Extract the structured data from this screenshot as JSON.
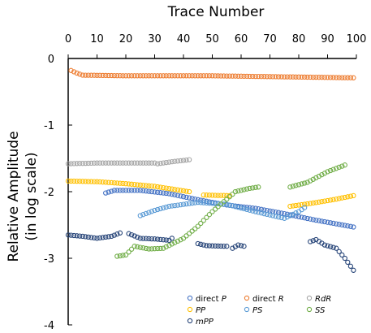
{
  "chart_data": {
    "type": "scatter",
    "title": "Trace Number",
    "ylabel": "Relative Amplitude",
    "ylabel2": "(in log scale)",
    "xlim": [
      0,
      100
    ],
    "ylim": [
      -4,
      0
    ],
    "x_ticks": [
      "0",
      "10",
      "20",
      "30",
      "40",
      "50",
      "60",
      "70",
      "80",
      "90",
      "100"
    ],
    "y_ticks": [
      "0",
      "-1",
      "-2",
      "-3",
      "-4"
    ],
    "grid": false,
    "legend_position": "bottom-right",
    "series": [
      {
        "name": "direct P",
        "label_prefix": "direct ",
        "label_main": "P",
        "color": "#4472C4",
        "segments": [
          {
            "x0": 13,
            "x1": 99,
            "keys": [
              [
                13,
                -2.02
              ],
              [
                16,
                -1.98
              ],
              [
                25,
                -1.98
              ],
              [
                35,
                -2.03
              ],
              [
                45,
                -2.12
              ],
              [
                55,
                -2.2
              ],
              [
                65,
                -2.25
              ],
              [
                75,
                -2.33
              ],
              [
                85,
                -2.42
              ],
              [
                99,
                -2.53
              ]
            ]
          }
        ]
      },
      {
        "name": "direct R",
        "label_prefix": "direct ",
        "label_main": "R",
        "color": "#ED7D31",
        "segments": [
          {
            "x0": 1,
            "x1": 99,
            "keys": [
              [
                1,
                -0.18
              ],
              [
                3,
                -0.22
              ],
              [
                5,
                -0.25
              ],
              [
                20,
                -0.26
              ],
              [
                50,
                -0.26
              ],
              [
                99,
                -0.29
              ]
            ]
          }
        ]
      },
      {
        "name": "RdR",
        "label_prefix": "",
        "label_main": "RdR",
        "color": "#A5A5A5",
        "segments": [
          {
            "x0": 0,
            "x1": 30,
            "keys": [
              [
                0,
                -1.58
              ],
              [
                10,
                -1.57
              ],
              [
                30,
                -1.57
              ]
            ]
          },
          {
            "x0": 31,
            "x1": 42,
            "keys": [
              [
                31,
                -1.58
              ],
              [
                36,
                -1.55
              ],
              [
                42,
                -1.52
              ]
            ]
          }
        ]
      },
      {
        "name": "PP",
        "label_prefix": "",
        "label_main": "PP",
        "color": "#FFC000",
        "segments": [
          {
            "x0": 0,
            "x1": 42,
            "keys": [
              [
                0,
                -1.84
              ],
              [
                10,
                -1.85
              ],
              [
                20,
                -1.88
              ],
              [
                30,
                -1.92
              ],
              [
                42,
                -2.0
              ]
            ]
          },
          {
            "x0": 47,
            "x1": 56,
            "keys": [
              [
                47,
                -2.05
              ],
              [
                56,
                -2.06
              ]
            ]
          },
          {
            "x0": 77,
            "x1": 99,
            "keys": [
              [
                77,
                -2.22
              ],
              [
                85,
                -2.17
              ],
              [
                92,
                -2.12
              ],
              [
                99,
                -2.06
              ]
            ]
          }
        ]
      },
      {
        "name": "PS",
        "label_prefix": "",
        "label_main": "PS",
        "color": "#5B9BD5",
        "segments": [
          {
            "x0": 25,
            "x1": 82,
            "keys": [
              [
                25,
                -2.36
              ],
              [
                30,
                -2.28
              ],
              [
                35,
                -2.22
              ],
              [
                45,
                -2.16
              ],
              [
                55,
                -2.19
              ],
              [
                65,
                -2.3
              ],
              [
                75,
                -2.4
              ],
              [
                80,
                -2.3
              ],
              [
                82,
                -2.24
              ]
            ]
          }
        ]
      },
      {
        "name": "SS",
        "label_prefix": "",
        "label_main": "SS",
        "color": "#70AD47",
        "segments": [
          {
            "x0": 17,
            "x1": 66,
            "keys": [
              [
                17,
                -2.97
              ],
              [
                20,
                -2.95
              ],
              [
                23,
                -2.82
              ],
              [
                28,
                -2.86
              ],
              [
                33,
                -2.85
              ],
              [
                40,
                -2.7
              ],
              [
                45,
                -2.52
              ],
              [
                50,
                -2.3
              ],
              [
                54,
                -2.15
              ],
              [
                58,
                -2.0
              ],
              [
                63,
                -1.95
              ],
              [
                66,
                -1.93
              ]
            ]
          },
          {
            "x0": 77,
            "x1": 96,
            "keys": [
              [
                77,
                -1.93
              ],
              [
                83,
                -1.86
              ],
              [
                90,
                -1.7
              ],
              [
                96,
                -1.6
              ]
            ]
          }
        ]
      },
      {
        "name": "mPP",
        "label_prefix": "",
        "label_main": "mPP",
        "color": "#264478",
        "segments": [
          {
            "x0": 0,
            "x1": 18,
            "keys": [
              [
                0,
                -2.65
              ],
              [
                5,
                -2.67
              ],
              [
                10,
                -2.7
              ],
              [
                15,
                -2.67
              ],
              [
                18,
                -2.62
              ]
            ]
          },
          {
            "x0": 21,
            "x1": 36,
            "keys": [
              [
                21,
                -2.63
              ],
              [
                25,
                -2.7
              ],
              [
                30,
                -2.71
              ],
              [
                35,
                -2.73
              ],
              [
                36,
                -2.7
              ]
            ]
          },
          {
            "x0": 45,
            "x1": 55,
            "keys": [
              [
                45,
                -2.78
              ],
              [
                48,
                -2.81
              ],
              [
                55,
                -2.82
              ]
            ]
          },
          {
            "x0": 57,
            "x1": 61,
            "keys": [
              [
                57,
                -2.85
              ],
              [
                59,
                -2.8
              ],
              [
                61,
                -2.82
              ]
            ]
          },
          {
            "x0": 84,
            "x1": 99,
            "keys": [
              [
                84,
                -2.75
              ],
              [
                86,
                -2.72
              ],
              [
                89,
                -2.8
              ],
              [
                93,
                -2.85
              ],
              [
                96,
                -3.0
              ],
              [
                99,
                -3.18
              ]
            ]
          }
        ]
      }
    ]
  }
}
